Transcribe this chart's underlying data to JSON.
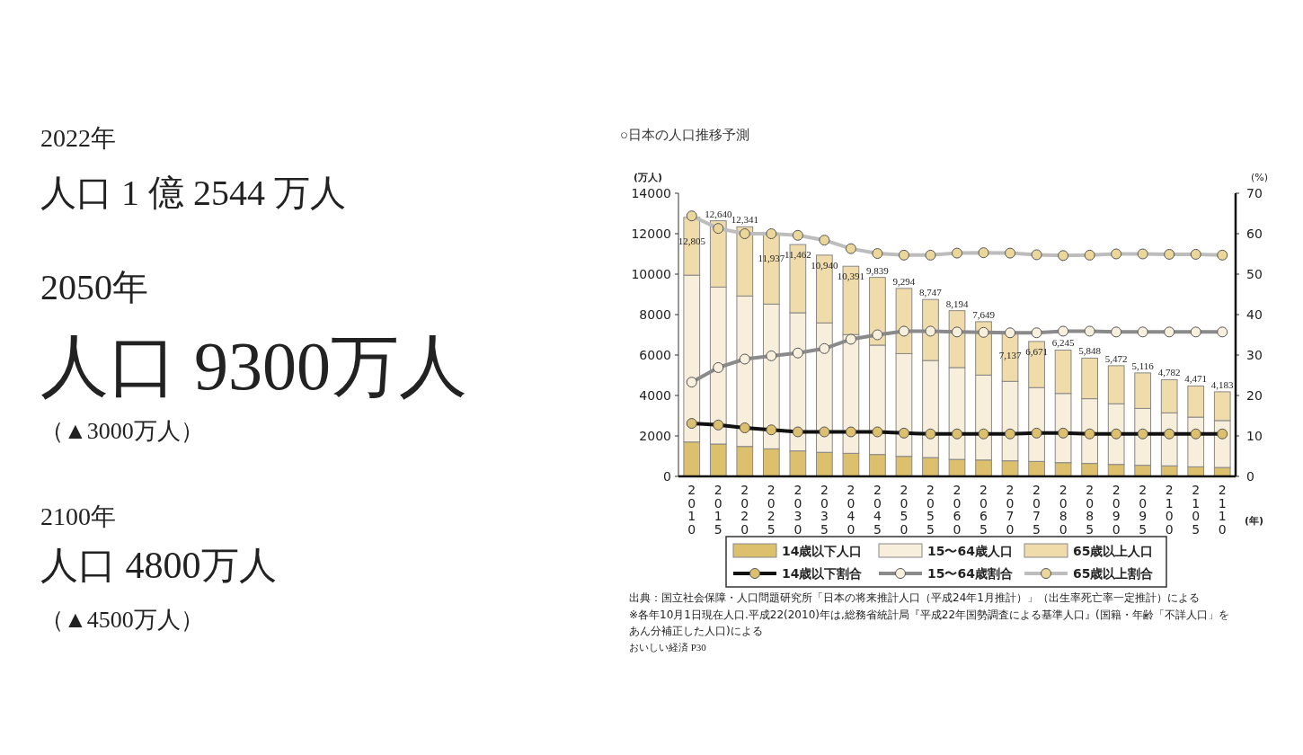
{
  "chart_data": {
    "type": "bar",
    "title": "○日本の人口推移予測",
    "ylabel": "(万人)",
    "y2label": "(%)",
    "xlabel": "(年)",
    "categories": [
      "2010",
      "2015",
      "2020",
      "2025",
      "2030",
      "2035",
      "2040",
      "2045",
      "2050",
      "2055",
      "2060",
      "2065",
      "2070",
      "2075",
      "2080",
      "2085",
      "2090",
      "2095",
      "2100",
      "2105",
      "2110"
    ],
    "stacked": true,
    "series": [
      {
        "name": "14歳以下人口",
        "color": "#dcc06e",
        "values": [
          1700,
          1600,
          1480,
          1360,
          1260,
          1190,
          1140,
          1080,
          990,
          930,
          840,
          810,
          770,
          740,
          680,
          640,
          590,
          550,
          520,
          470,
          440
        ]
      },
      {
        "name": "15〜64歳人口",
        "color": "#f7eedb",
        "values": [
          8250,
          7760,
          7440,
          7160,
          6830,
          6400,
          5870,
          5410,
          5080,
          4800,
          4540,
          4200,
          3930,
          3650,
          3420,
          3200,
          3000,
          2810,
          2620,
          2460,
          2320
        ]
      },
      {
        "name": "65歳以上人口",
        "color": "#efdcaa",
        "values": [
          2855,
          3280,
          3421,
          3417,
          3372,
          3350,
          3381,
          3349,
          3224,
          3017,
          2814,
          2639,
          2437,
          2281,
          2145,
          2008,
          1882,
          1756,
          1642,
          1541,
          1423
        ]
      },
      {
        "name": "14歳以下割合",
        "type": "line",
        "axis": "y2",
        "color": "#111111",
        "marker": "circle",
        "colors": [
          "#dcc06e",
          "#dcc06e",
          "#dcc06e",
          "#dcc06e",
          "#dcc06e",
          "#dcc06e",
          "#dcc06e",
          "#dcc06e",
          "#dcc06e",
          "#dcc06e",
          "#dcc06e",
          "#dcc06e",
          "#dcc06e",
          "#dcc06e",
          "#dcc06e",
          "#dcc06e",
          "#dcc06e",
          "#dcc06e",
          "#dcc06e",
          "#dcc06e",
          "#dcc06e"
        ],
        "values": [
          13.1,
          12.7,
          12.0,
          11.5,
          11.0,
          11.0,
          11.0,
          11.0,
          10.7,
          10.5,
          10.5,
          10.5,
          10.5,
          10.7,
          10.7,
          10.5,
          10.5,
          10.5,
          10.5,
          10.5,
          10.5
        ]
      },
      {
        "name": "15〜64歳割合",
        "type": "line",
        "axis": "y2",
        "color": "#8a8a8a",
        "marker": "circle",
        "colors": [
          "#f8f0dc",
          "#f8f0dc",
          "#f8f0dc",
          "#f8f0dc",
          "#f8f0dc",
          "#f8f0dc",
          "#f8f0dc",
          "#f8f0dc",
          "#f8f0dc",
          "#f8f0dc",
          "#f8f0dc",
          "#f8f0dc",
          "#f8f0dc",
          "#f8f0dc",
          "#f8f0dc",
          "#f8f0dc",
          "#f8f0dc",
          "#f8f0dc",
          "#f8f0dc",
          "#f8f0dc",
          "#f8f0dc"
        ],
        "values": [
          23.3,
          26.9,
          29.0,
          29.8,
          30.5,
          31.6,
          33.9,
          35.0,
          35.9,
          35.9,
          35.7,
          35.6,
          35.5,
          35.5,
          35.9,
          35.9,
          35.7,
          35.7,
          35.7,
          35.7,
          35.7
        ]
      },
      {
        "name": "65歳以上割合",
        "type": "line",
        "axis": "y2",
        "color": "#bdbdbd",
        "marker": "circle",
        "colors": [
          "#ecd79a",
          "#ecd79a",
          "#ecd79a",
          "#ecd79a",
          "#ecd79a",
          "#ecd79a",
          "#ecd79a",
          "#ecd79a",
          "#ecd79a",
          "#ecd79a",
          "#ecd79a",
          "#ecd79a",
          "#ecd79a",
          "#ecd79a",
          "#ecd79a",
          "#ecd79a",
          "#ecd79a",
          "#ecd79a",
          "#ecd79a",
          "#ecd79a",
          "#ecd79a"
        ],
        "values": [
          64.4,
          61.3,
          60.0,
          60.0,
          59.6,
          58.4,
          56.3,
          55.1,
          54.7,
          54.7,
          55.2,
          55.3,
          55.2,
          54.8,
          54.6,
          54.7,
          55.0,
          55.0,
          54.9,
          54.9,
          54.7
        ]
      }
    ],
    "totals": [
      "12,805",
      "12,640",
      "12,341",
      "11,937",
      "11,462",
      "10,940",
      "10,391",
      "9,839",
      "9,294",
      "8,747",
      "8,194",
      "7,649",
      "7,137",
      "6,671",
      "6,245",
      "5,848",
      "5,472",
      "5,116",
      "4,782",
      "4,471",
      "4,183"
    ],
    "ylim": [
      0,
      14000
    ],
    "yticks": [
      0,
      2000,
      4000,
      6000,
      8000,
      10000,
      12000,
      14000
    ],
    "y2lim": [
      0,
      70
    ],
    "y2ticks": [
      0,
      10,
      20,
      30,
      40,
      50,
      60,
      70
    ],
    "legend": "bottom",
    "annotations": [
      "2022年",
      "人口 1 億 2544 万人",
      "2050年",
      "人口 9300万人",
      "（▲3000万人）",
      "2100年",
      "人口 4800万人",
      "（▲4500万人）",
      "出典：国立社会保障・人口問題研究所「日本の将来推計人口（平成24年1月推計）」（出生率死亡率一定推計）による",
      "※各年10月1日現在人口.平成22(2010)年は,総務省統計局『平成22年国勢調査による基準人口』(国籍・年齢「不詳人口」を",
      "あん分補正した人口)による",
      "おいしい経済 P30"
    ]
  }
}
